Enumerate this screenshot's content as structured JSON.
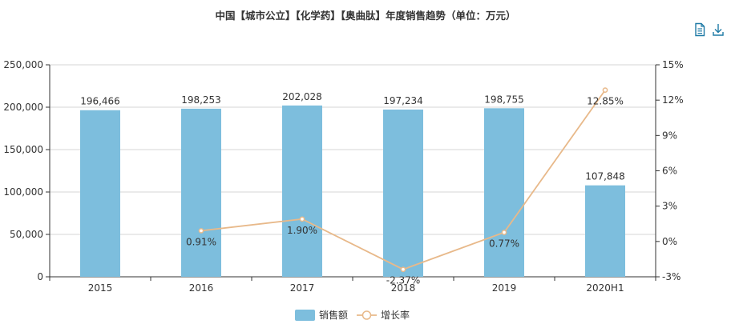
{
  "toolbar": {
    "data_view_icon": "data-view-icon",
    "download_icon": "download-icon",
    "icon_color": "#1f7aa6"
  },
  "chart_data": {
    "type": "bar",
    "title": "中国【城市公立】【化学药】【奥曲肽】年度销售趋势（单位：万元）",
    "categories": [
      "2015",
      "2016",
      "2017",
      "2018",
      "2019",
      "2020H1"
    ],
    "series": [
      {
        "name": "销售额",
        "type": "bar",
        "axis": "left",
        "color": "#7dbedd",
        "values": [
          196466,
          198253,
          202028,
          197234,
          198755,
          107848
        ],
        "labels": [
          "196,466",
          "198,253",
          "202,028",
          "197,234",
          "198,755",
          "107,848"
        ]
      },
      {
        "name": "增长率",
        "type": "line",
        "axis": "right",
        "color": "#e8b98a",
        "values": [
          null,
          0.91,
          1.9,
          -2.37,
          0.77,
          12.85
        ],
        "labels": [
          "",
          "0.91%",
          "1.90%",
          "-2.37%",
          "0.77%",
          "12.85%"
        ]
      }
    ],
    "y_left": {
      "min": 0,
      "max": 250000,
      "ticks": [
        0,
        50000,
        100000,
        150000,
        200000,
        250000
      ],
      "tick_labels": [
        "0",
        "50,000",
        "100,000",
        "150,000",
        "200,000",
        "250,000"
      ]
    },
    "y_right": {
      "min": -3,
      "max": 15,
      "ticks": [
        -3,
        0,
        3,
        6,
        9,
        12,
        15
      ],
      "tick_labels": [
        "-3%",
        "0%",
        "3%",
        "6%",
        "9%",
        "12%",
        "15%"
      ]
    },
    "grid": true,
    "legend_position": "bottom-center",
    "legend": [
      "销售额",
      "增长率"
    ]
  }
}
